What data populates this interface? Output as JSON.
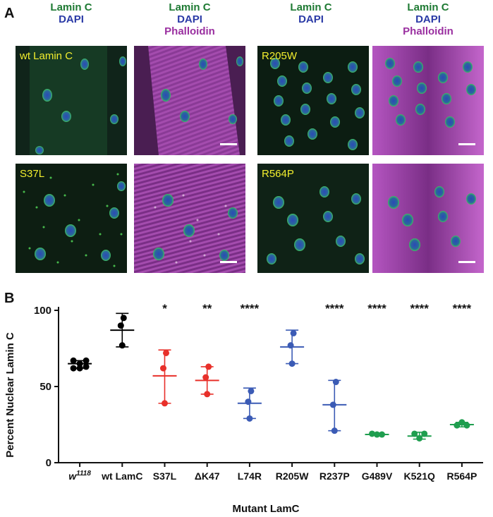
{
  "panel_a": {
    "letter": "A",
    "headers": [
      {
        "line1": "Lamin C",
        "line2": "DAPI",
        "line3": ""
      },
      {
        "line1": "Lamin C",
        "line2": "DAPI",
        "line3": "Phalloidin"
      },
      {
        "line1": "Lamin C",
        "line2": "DAPI",
        "line3": ""
      },
      {
        "line1": "Lamin C",
        "line2": "DAPI",
        "line3": "Phalloidin"
      }
    ],
    "image_labels": {
      "wt": "wt Lamin C",
      "r205w": "R205W",
      "s37l": "S37L",
      "r564p": "R564P"
    }
  },
  "panel_b": {
    "letter": "B"
  },
  "chart_data": {
    "type": "scatter",
    "title": "",
    "xlabel": "Mutant LamC",
    "ylabel": "Percent Nuclear Lamin C",
    "ylim": [
      0,
      100
    ],
    "yticks": [
      0,
      50,
      100
    ],
    "grid": false,
    "legend": "none",
    "categories": [
      {
        "label": "w",
        "superscript": "1118",
        "color": "#000000",
        "points": [
          67,
          65,
          63,
          62,
          62,
          67
        ],
        "mean": 65,
        "sd_low": 62,
        "sd_high": 67,
        "significance": ""
      },
      {
        "label": "wt LamC",
        "superscript": "",
        "color": "#000000",
        "points": [
          95,
          90,
          77
        ],
        "mean": 87,
        "sd_low": 76,
        "sd_high": 98,
        "significance": ""
      },
      {
        "label": "S37L",
        "superscript": "",
        "color": "#e8302a",
        "points": [
          72,
          62,
          39
        ],
        "mean": 57,
        "sd_low": 39,
        "sd_high": 74,
        "significance": "*"
      },
      {
        "label": "ΔK47",
        "superscript": "",
        "color": "#e8302a",
        "points": [
          63,
          56,
          45
        ],
        "mean": 54,
        "sd_low": 45,
        "sd_high": 63,
        "significance": "**"
      },
      {
        "label": "L74R",
        "superscript": "",
        "color": "#3b5bb5",
        "points": [
          47,
          40,
          29
        ],
        "mean": 39,
        "sd_low": 29,
        "sd_high": 49,
        "significance": "****"
      },
      {
        "label": "R205W",
        "superscript": "",
        "color": "#3b5bb5",
        "points": [
          85,
          77,
          65
        ],
        "mean": 76,
        "sd_low": 65,
        "sd_high": 87,
        "significance": ""
      },
      {
        "label": "R237P",
        "superscript": "",
        "color": "#3b5bb5",
        "points": [
          53,
          38,
          21
        ],
        "mean": 38,
        "sd_low": 21,
        "sd_high": 54,
        "significance": "****"
      },
      {
        "label": "G489V",
        "superscript": "",
        "color": "#1f9e4f",
        "points": [
          19,
          18.5,
          18.5
        ],
        "mean": 18.5,
        "sd_low": 18,
        "sd_high": 19.5,
        "significance": "****"
      },
      {
        "label": "K521Q",
        "superscript": "",
        "color": "#1f9e4f",
        "points": [
          19,
          16,
          19
        ],
        "mean": 17.5,
        "sd_low": 15.5,
        "sd_high": 20,
        "significance": "****"
      },
      {
        "label": "R564P",
        "superscript": "",
        "color": "#1f9e4f",
        "points": [
          24.5,
          26.5,
          24.5
        ],
        "mean": 25,
        "sd_low": 23.5,
        "sd_high": 26.5,
        "significance": "****"
      }
    ]
  }
}
